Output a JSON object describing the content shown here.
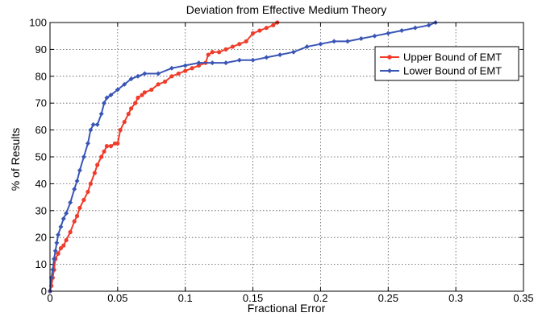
{
  "chart_data": {
    "type": "line",
    "title": "Deviation from Effective Medium Theory",
    "xlabel": "Fractional Error",
    "ylabel": "% of Results",
    "xlim": [
      0,
      0.35
    ],
    "ylim": [
      0,
      100
    ],
    "xticks": [
      "0",
      "0.05",
      "0.1",
      "0.15",
      "0.2",
      "0.25",
      "0.3",
      "0.35"
    ],
    "yticks": [
      "0",
      "10",
      "20",
      "30",
      "40",
      "50",
      "60",
      "70",
      "80",
      "90",
      "100"
    ],
    "grid": true,
    "legend_position": "top-right",
    "series": [
      {
        "name": "Upper Bound of EMT",
        "color": "#f03c2a",
        "marker": "circle",
        "x": [
          0,
          0.001,
          0.002,
          0.003,
          0.004,
          0.006,
          0.008,
          0.01,
          0.012,
          0.015,
          0.018,
          0.02,
          0.022,
          0.025,
          0.028,
          0.03,
          0.033,
          0.035,
          0.038,
          0.04,
          0.042,
          0.045,
          0.048,
          0.05,
          0.052,
          0.055,
          0.058,
          0.06,
          0.063,
          0.065,
          0.068,
          0.07,
          0.075,
          0.08,
          0.085,
          0.09,
          0.095,
          0.1,
          0.105,
          0.11,
          0.115,
          0.117,
          0.12,
          0.125,
          0.13,
          0.135,
          0.14,
          0.145,
          0.15,
          0.155,
          0.16,
          0.165,
          0.168
        ],
        "y": [
          0,
          2,
          5,
          8,
          12,
          14,
          16,
          17,
          19,
          22,
          26,
          28,
          31,
          34,
          37,
          40,
          44,
          47,
          50,
          52,
          54,
          54,
          55,
          55,
          60,
          63,
          66,
          68,
          70,
          72,
          73,
          74,
          75,
          77,
          78,
          80,
          81,
          82,
          83,
          84,
          85,
          88,
          89,
          89,
          90,
          91,
          92,
          93,
          96,
          97,
          98,
          99,
          100
        ]
      },
      {
        "name": "Lower Bound of EMT",
        "color": "#3a56b5",
        "marker": "diamond",
        "x": [
          0,
          0.001,
          0.002,
          0.003,
          0.004,
          0.005,
          0.006,
          0.008,
          0.01,
          0.012,
          0.015,
          0.018,
          0.02,
          0.022,
          0.025,
          0.028,
          0.03,
          0.032,
          0.035,
          0.038,
          0.04,
          0.042,
          0.045,
          0.05,
          0.055,
          0.06,
          0.065,
          0.07,
          0.08,
          0.09,
          0.1,
          0.11,
          0.12,
          0.13,
          0.14,
          0.15,
          0.16,
          0.17,
          0.18,
          0.19,
          0.2,
          0.21,
          0.22,
          0.23,
          0.24,
          0.25,
          0.26,
          0.27,
          0.28,
          0.285
        ],
        "y": [
          0,
          5,
          8,
          12,
          15,
          18,
          21,
          24,
          27,
          29,
          33,
          38,
          41,
          45,
          50,
          55,
          60,
          62,
          62,
          66,
          70,
          72,
          73,
          75,
          77,
          79,
          80,
          81,
          81,
          83,
          84,
          85,
          85,
          85,
          86,
          86,
          87,
          88,
          89,
          91,
          92,
          93,
          93,
          94,
          95,
          96,
          97,
          98,
          99,
          100
        ]
      }
    ]
  }
}
